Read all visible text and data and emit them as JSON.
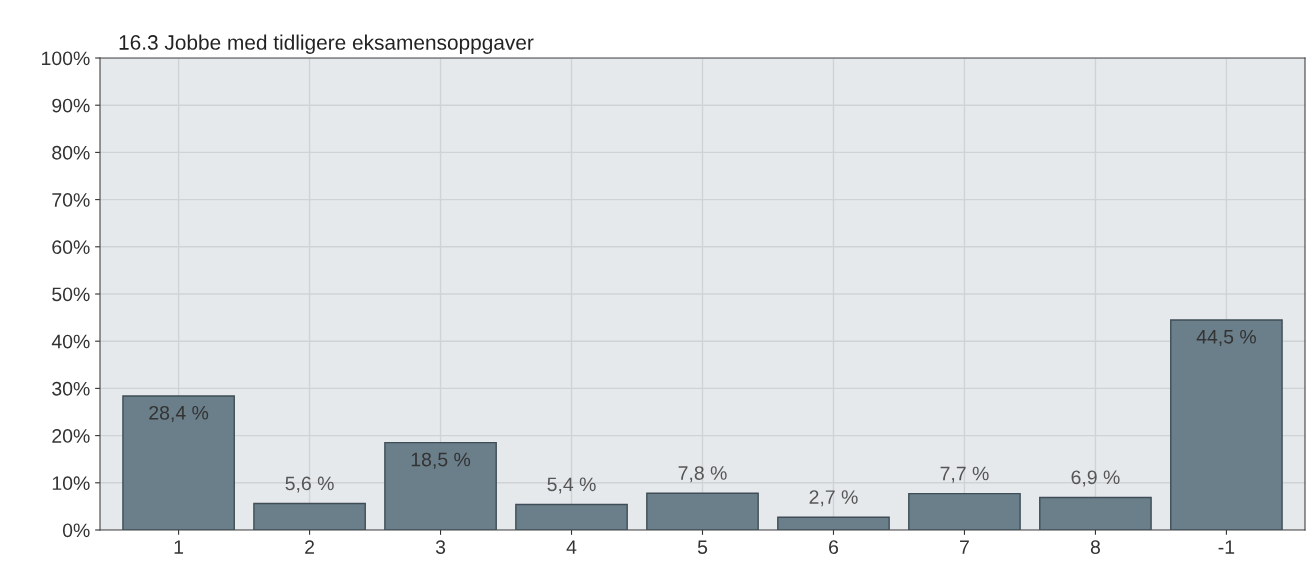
{
  "chart_data": {
    "type": "bar",
    "title": "16.3 Jobbe med tidligere eksamensoppgaver",
    "categories": [
      "1",
      "2",
      "3",
      "4",
      "5",
      "6",
      "7",
      "8",
      "-1"
    ],
    "values": [
      28.4,
      5.6,
      18.5,
      5.4,
      7.8,
      2.7,
      7.7,
      6.9,
      44.5
    ],
    "value_labels": [
      "28,4 %",
      "5,6 %",
      "18,5 %",
      "5,4 %",
      "7,8 %",
      "2,7 %",
      "7,7 %",
      "6,9 %",
      "44,5 %"
    ],
    "color": "#6b7f8b",
    "ylim": [
      0,
      100
    ],
    "yticks": [
      {
        "value": 0,
        "label": "0%"
      },
      {
        "value": 10,
        "label": "10%"
      },
      {
        "value": 20,
        "label": "20%"
      },
      {
        "value": 30,
        "label": "30%"
      },
      {
        "value": 40,
        "label": "40%"
      },
      {
        "value": 50,
        "label": "50%"
      },
      {
        "value": 60,
        "label": "60%"
      },
      {
        "value": 70,
        "label": "70%"
      },
      {
        "value": 80,
        "label": "80%"
      },
      {
        "value": 90,
        "label": "90%"
      },
      {
        "value": 100,
        "label": "100%"
      }
    ],
    "grid": true
  }
}
